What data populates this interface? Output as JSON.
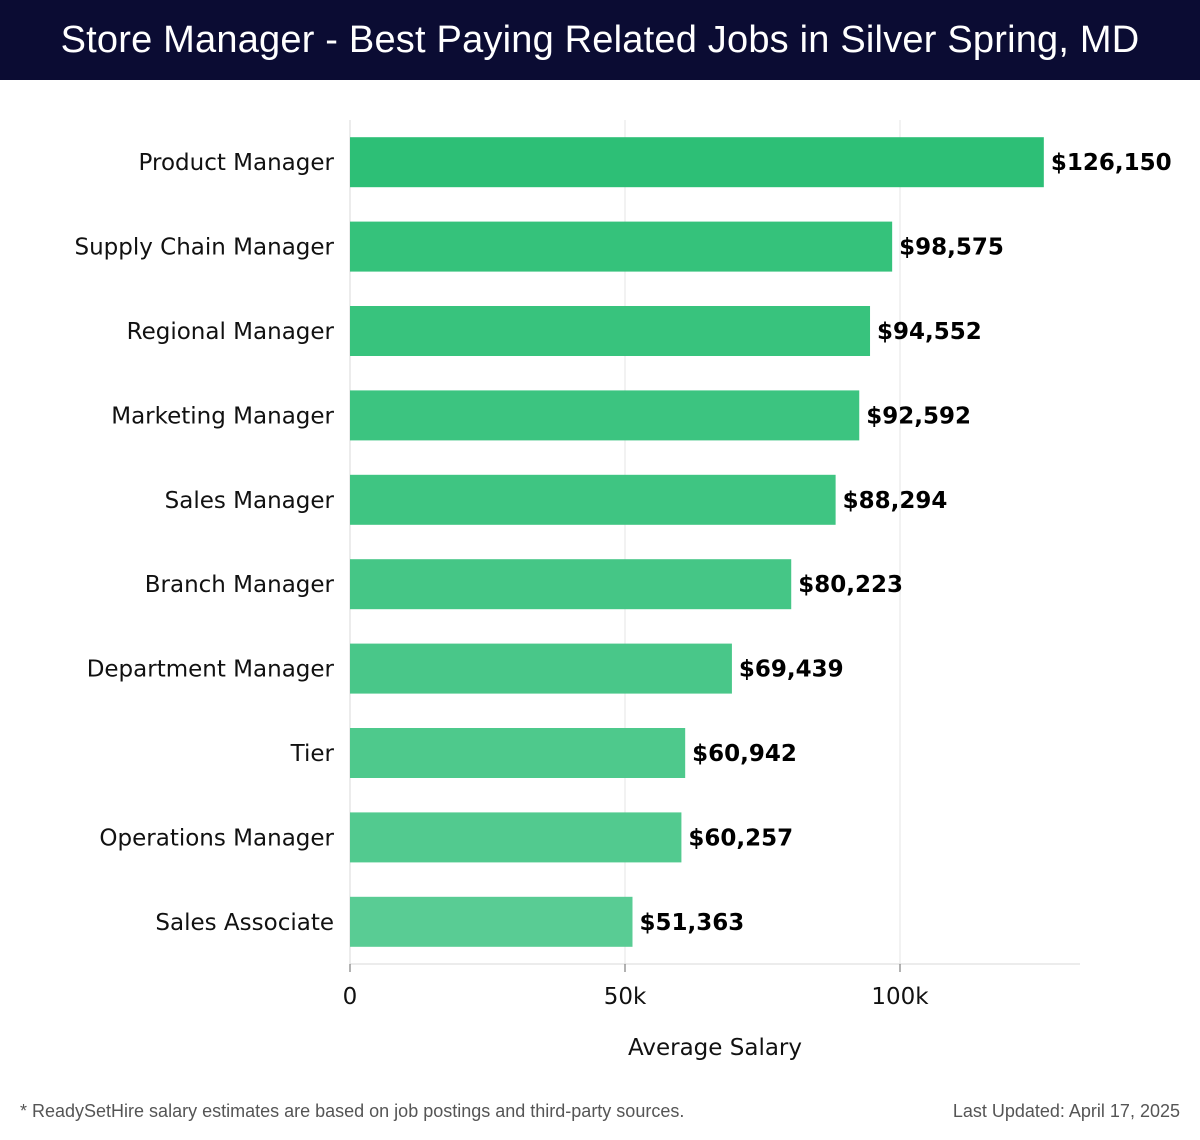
{
  "header": {
    "title": "Store Manager - Best Paying Related Jobs in Silver Spring, MD"
  },
  "chart_data": {
    "type": "bar",
    "orientation": "horizontal",
    "title": "Store Manager - Best Paying Related Jobs in Silver Spring, MD",
    "xlabel": "Average Salary",
    "ylabel": "",
    "xlim": [
      0,
      133000
    ],
    "x_ticks": [
      0,
      50000,
      100000
    ],
    "x_tick_labels": [
      "0",
      "50k",
      "100k"
    ],
    "grid": "vertical",
    "legend": "none",
    "categories": [
      "Product Manager",
      "Supply Chain Manager",
      "Regional Manager",
      "Marketing Manager",
      "Sales Manager",
      "Branch Manager",
      "Department Manager",
      "Tier",
      "Operations Manager",
      "Sales Associate"
    ],
    "values": [
      126150,
      98575,
      94552,
      92592,
      88294,
      80223,
      69439,
      60942,
      60257,
      51363
    ],
    "value_labels": [
      "$126,150",
      "$98,575",
      "$94,552",
      "$92,592",
      "$88,294",
      "$80,223",
      "$69,439",
      "$60,942",
      "$60,257",
      "$51,363"
    ],
    "bar_colors": [
      "#2dbf76",
      "#35c27b",
      "#38c37d",
      "#3cc480",
      "#3fc582",
      "#45c686",
      "#49c789",
      "#4ec98c",
      "#52ca8f",
      "#59cc94"
    ]
  },
  "footer": {
    "note": "* ReadySetHire salary estimates are based on job postings and third-party sources.",
    "updated": "Last Updated: April 17, 2025"
  }
}
